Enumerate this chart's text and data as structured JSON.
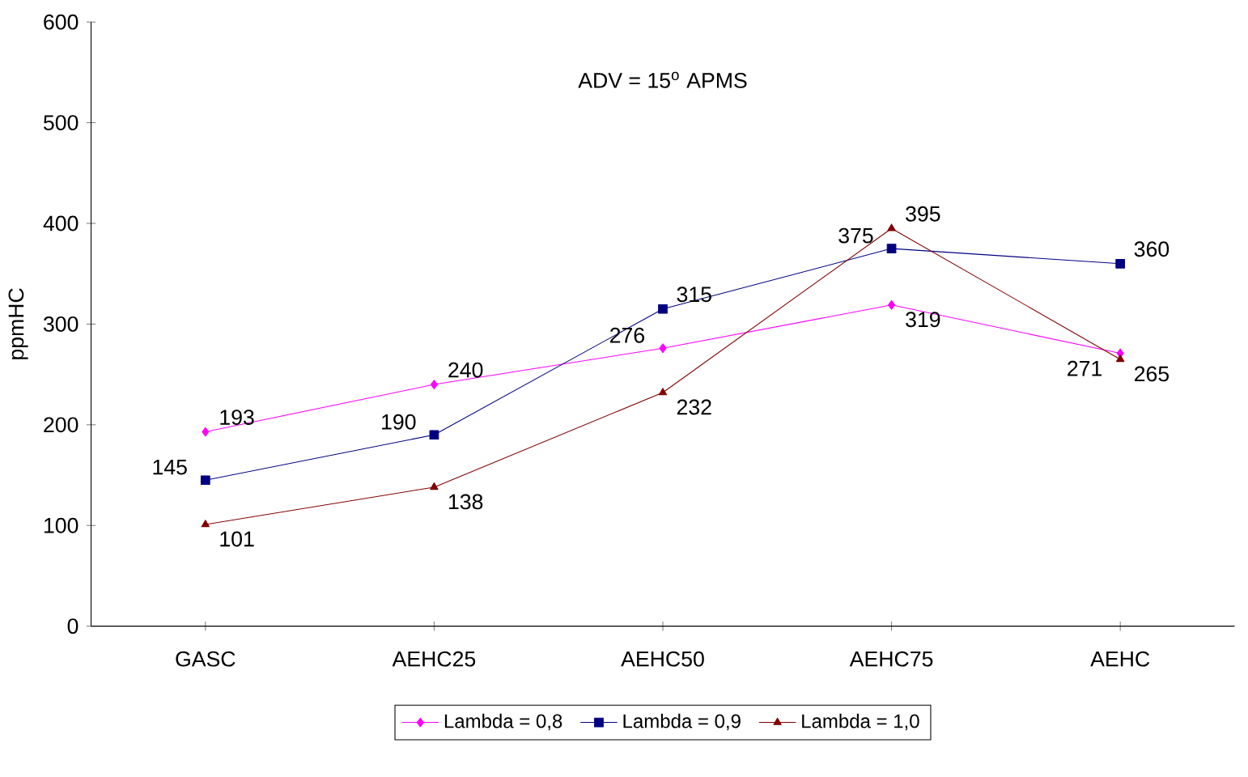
{
  "chart_data": {
    "type": "line",
    "ylabel": "ppmHC",
    "annotations": [
      "ADV = 15$^{o}$ APMS"
    ],
    "categories": [
      "GASC",
      "AEHC25",
      "AEHC50",
      "AEHC75",
      "AEHC"
    ],
    "series": [
      {
        "name": "Lambda = 0,8",
        "color": "#ff00ff",
        "marker": "diamond",
        "values": [
          193,
          240,
          276,
          319,
          271
        ]
      },
      {
        "name": "Lambda = 0,9",
        "color": "#000080",
        "marker": "square",
        "values": [
          145,
          190,
          315,
          375,
          360
        ]
      },
      {
        "name": "Lambda = 1,0",
        "color": "#800000",
        "marker": "triangle",
        "values": [
          101,
          138,
          232,
          395,
          265
        ]
      }
    ],
    "ylim": [
      0,
      600
    ],
    "yticks": [
      0,
      100,
      200,
      300,
      400,
      500,
      600
    ],
    "data_labels": true,
    "legend": "bottom",
    "grid": false,
    "line_style": "solid"
  }
}
